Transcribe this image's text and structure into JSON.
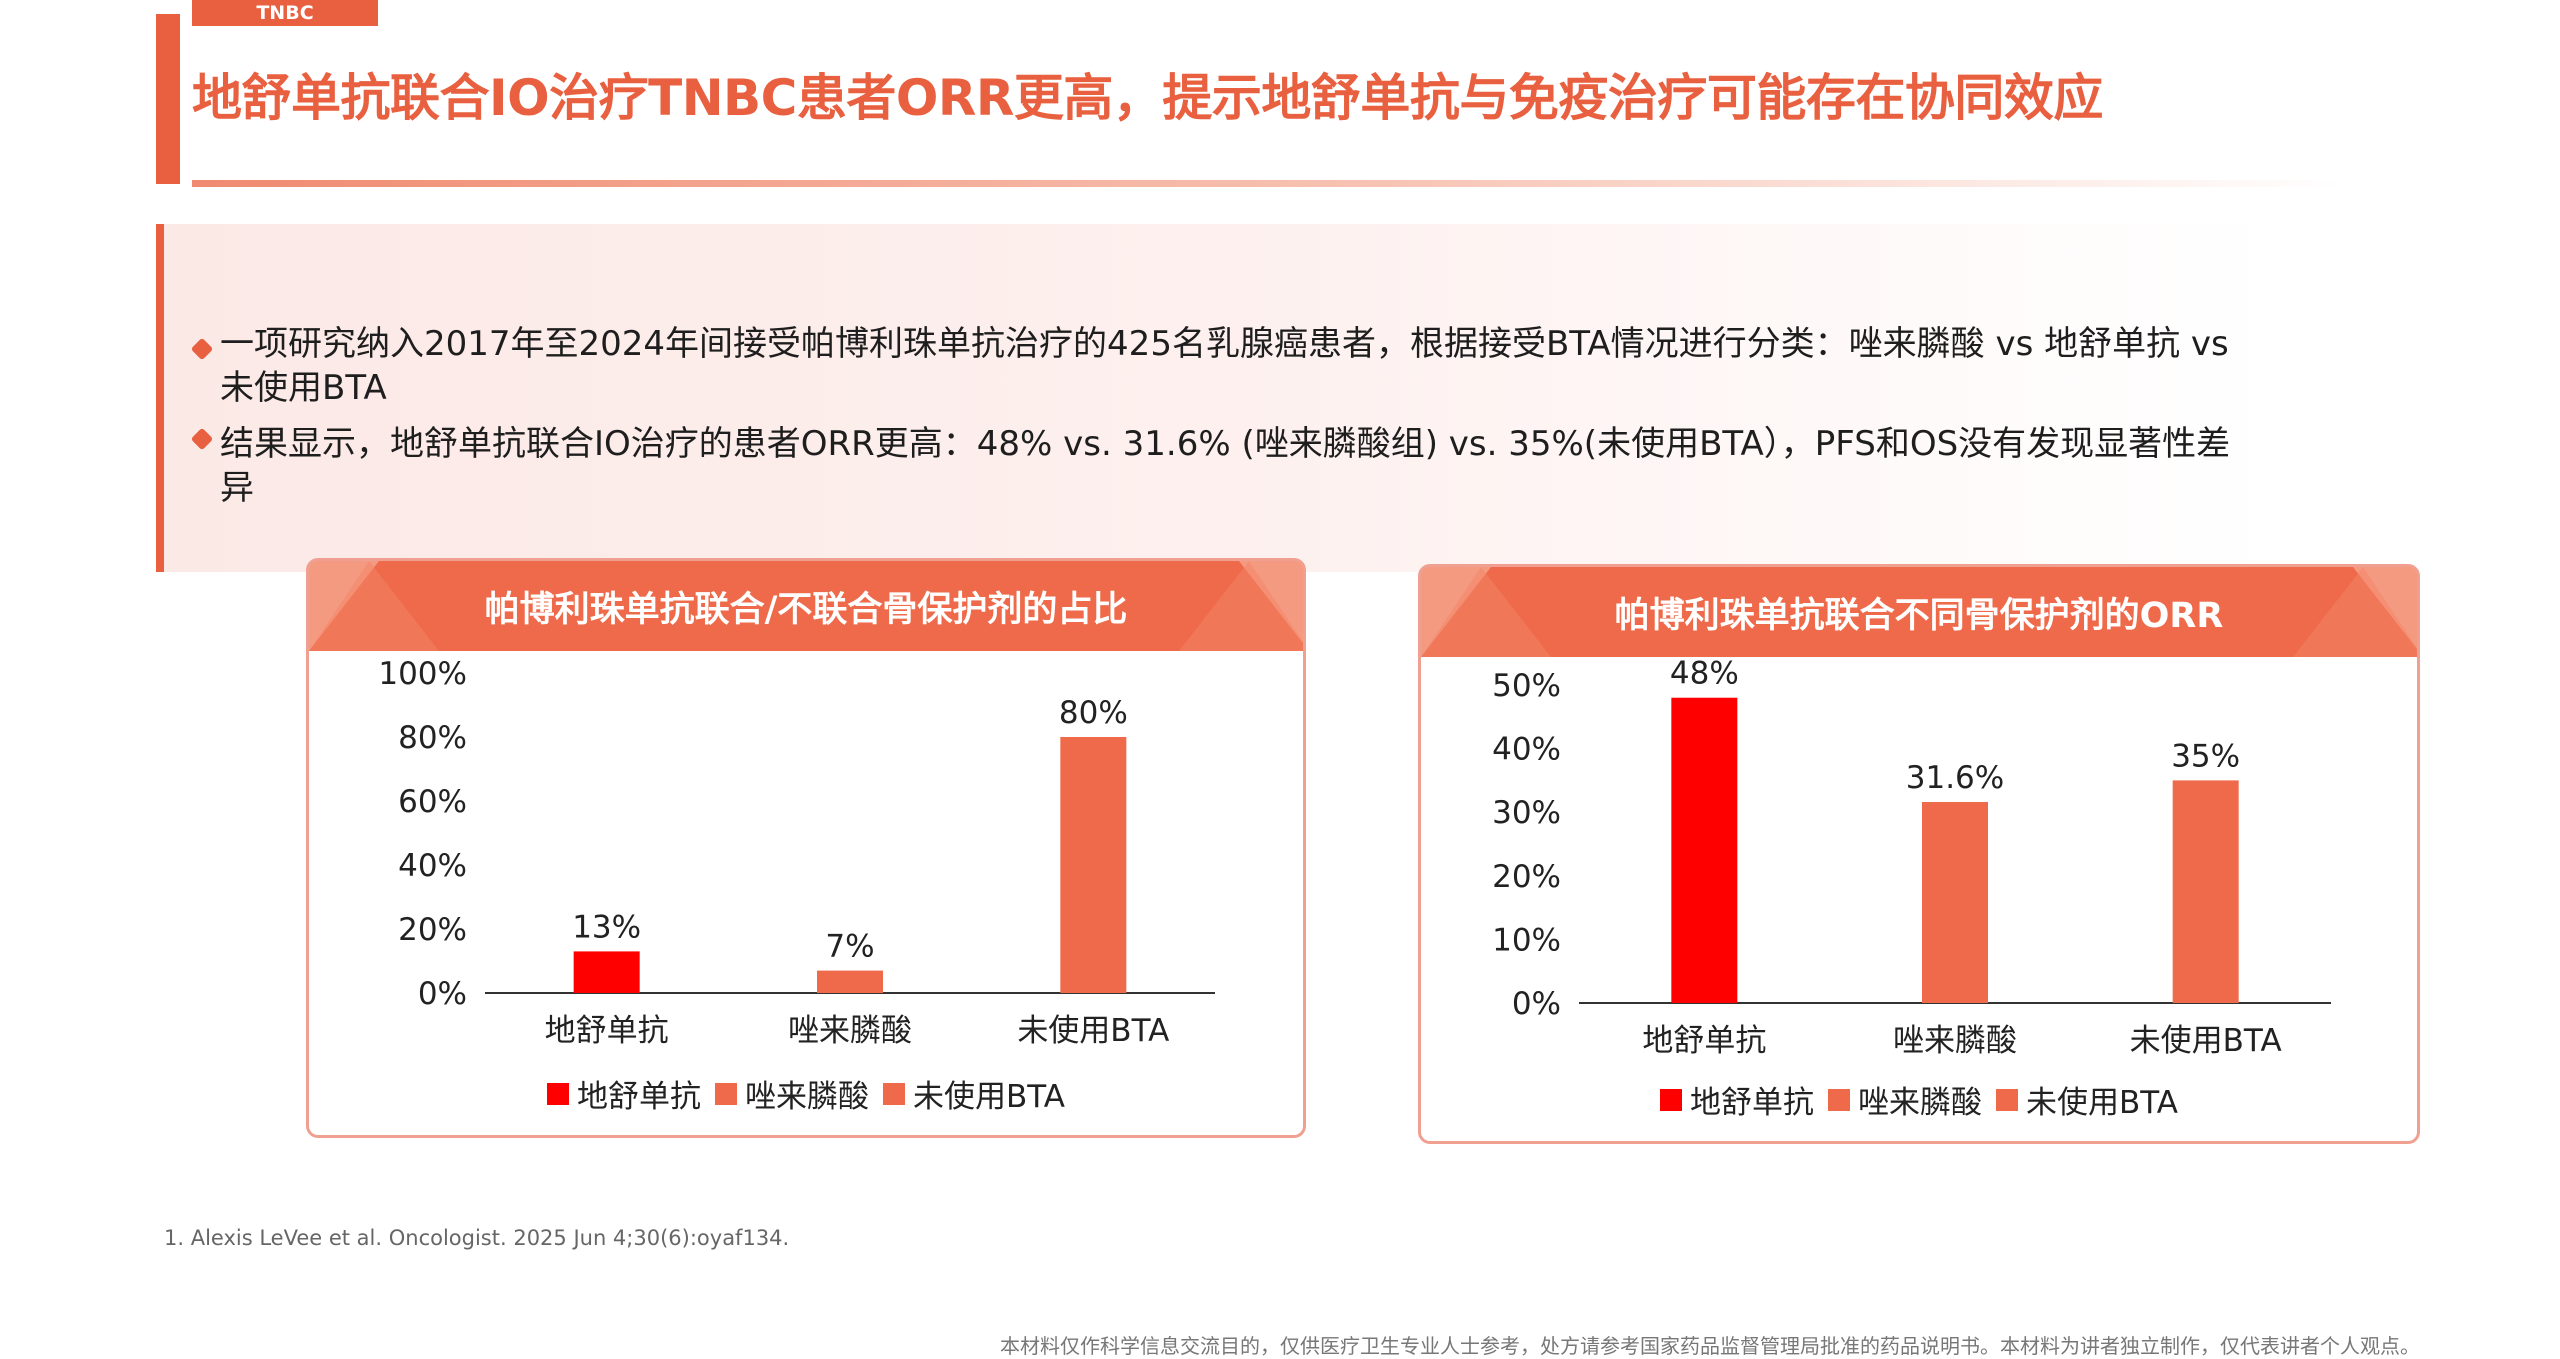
{
  "header": {
    "tag": "TNBC",
    "title": "地舒单抗联合IO治疗TNBC患者ORR更高，提示地舒单抗与免疫治疗可能存在协同效应"
  },
  "summary": {
    "bullets": [
      "一项研究纳入2017年至2024年间接受帕博利珠单抗治疗的425名乳腺癌患者，根据接受BTA情况进行分类：唑来膦酸 vs 地舒单抗 vs 未使用BTA",
      "结果显示，地舒单抗联合IO治疗的患者ORR更高：48% vs. 31.6% (唑来膦酸组) vs. 35%(未使用BTA），PFS和OS没有发现显著性差异"
    ]
  },
  "colors": {
    "accent": "#e8603f",
    "highlight": "#ff0000",
    "bar": "#ee6a4a"
  },
  "chart_data": [
    {
      "type": "bar",
      "title": "帕博利珠单抗联合/不联合骨保护剂的占比",
      "categories": [
        "地舒单抗",
        "唑来膦酸",
        "未使用BTA"
      ],
      "values": [
        13,
        7,
        80
      ],
      "data_labels": [
        "13%",
        "7%",
        "80%"
      ],
      "ylim": [
        0,
        100
      ],
      "yticks": [
        "0%",
        "20%",
        "40%",
        "60%",
        "80%",
        "100%"
      ],
      "legend": [
        "地舒单抗",
        "唑来膦酸",
        "未使用BTA"
      ],
      "legend_position": "bottom",
      "bar_colors": [
        "#ff0000",
        "#ee6a4a",
        "#ee6a4a"
      ],
      "grid": false
    },
    {
      "type": "bar",
      "title": "帕博利珠单抗联合不同骨保护剂的ORR",
      "categories": [
        "地舒单抗",
        "唑来膦酸",
        "未使用BTA"
      ],
      "values": [
        48,
        31.6,
        35
      ],
      "data_labels": [
        "48%",
        "31.6%",
        "35%"
      ],
      "ylim": [
        0,
        50
      ],
      "yticks": [
        "0%",
        "10%",
        "20%",
        "30%",
        "40%",
        "50%"
      ],
      "legend": [
        "地舒单抗",
        "唑来膦酸",
        "未使用BTA"
      ],
      "legend_position": "bottom",
      "bar_colors": [
        "#ff0000",
        "#ee6a4a",
        "#ee6a4a"
      ],
      "grid": false
    }
  ],
  "footnote": "1. Alexis LeVee et al. Oncologist. 2025 Jun 4;30(6):oyaf134.",
  "disclaimer": "本材料仅作科学信息交流目的，仅供医疗卫生专业人士参考，处方请参考国家药品监督管理局批准的药品说明书。本材料为讲者独立制作，仅代表讲者个人观点。"
}
